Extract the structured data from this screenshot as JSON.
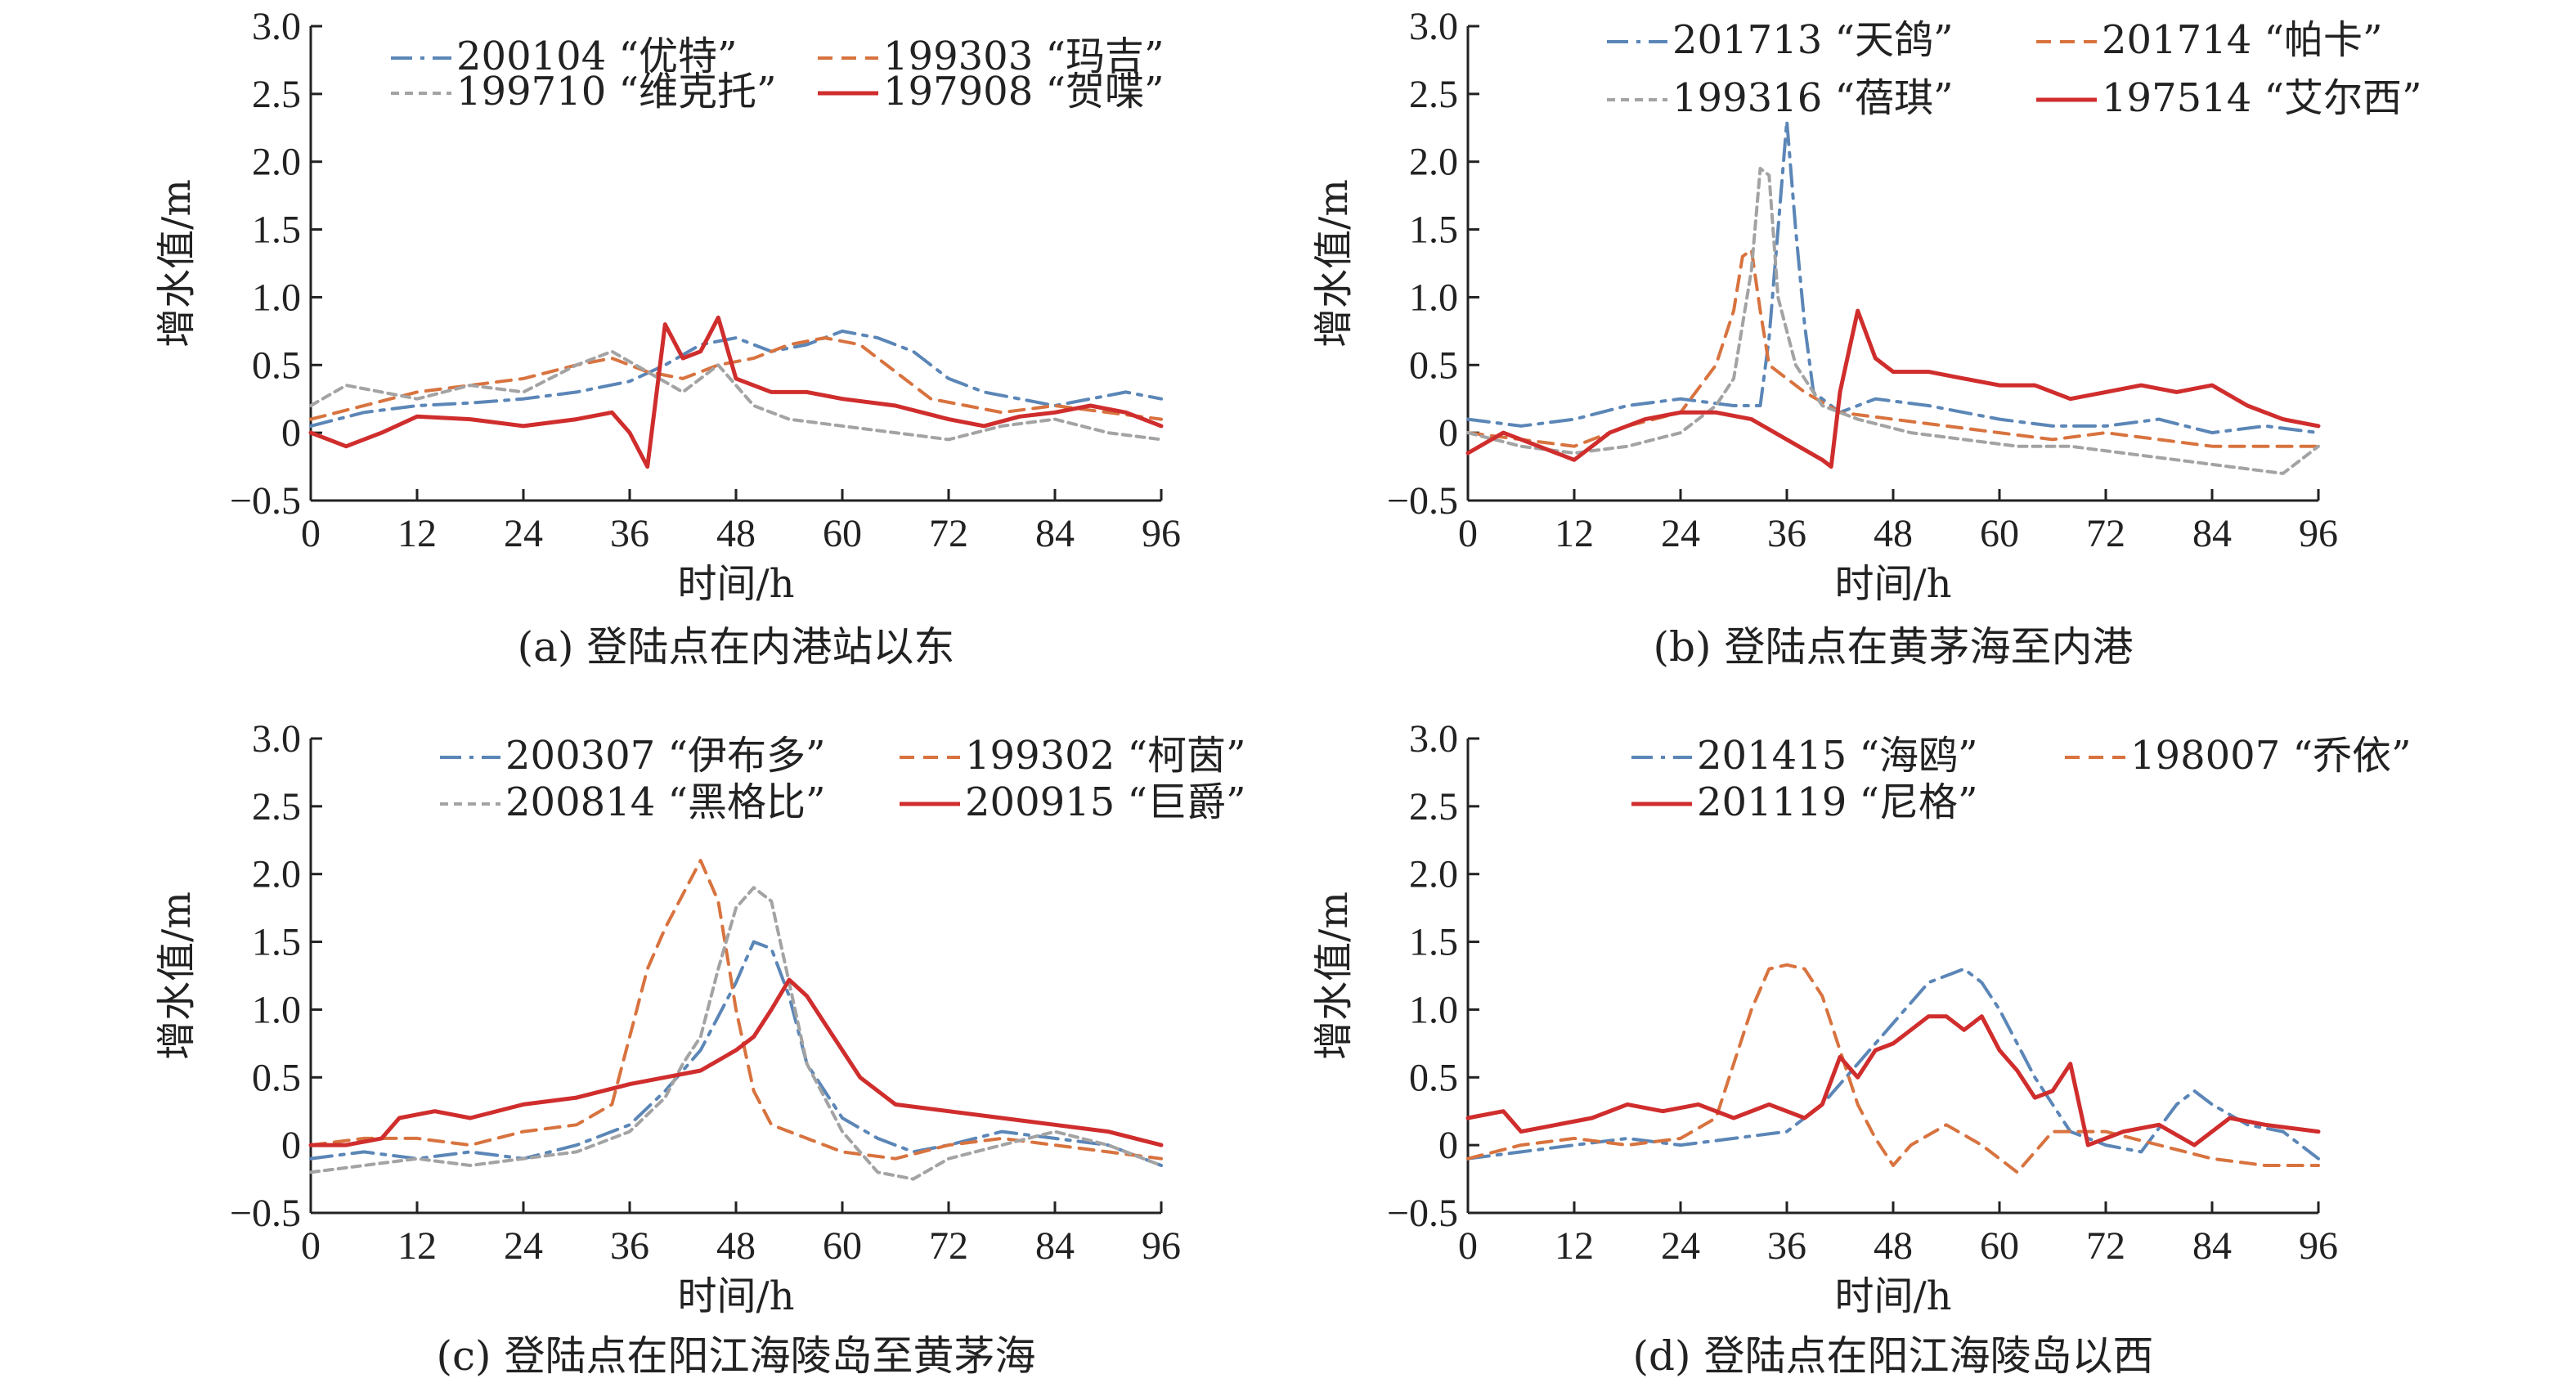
{
  "colors": {
    "blue": "#5b86b7",
    "orange": "#d8733f",
    "gray": "#a3a3a3",
    "red": "#d02d2d"
  },
  "axes": {
    "xlabel": "时间/h",
    "ylabel": "增水值/m"
  },
  "chart_data": [
    {
      "type": "line",
      "caption": "(a) 登陆点在内港站以东",
      "xlim": [
        0,
        96
      ],
      "ylim": [
        -0.5,
        3.0
      ],
      "xticks": [
        "0",
        "12",
        "24",
        "36",
        "48",
        "60",
        "72",
        "84",
        "96"
      ],
      "yticks": [
        "−0.5",
        "0",
        "0.5",
        "1.0",
        "1.5",
        "2.0",
        "2.5",
        "3.0"
      ],
      "series": [
        {
          "name": "200104 “优特”",
          "style": "dashdot",
          "color": "#5b86b7",
          "x": [
            0,
            6,
            12,
            18,
            24,
            30,
            36,
            40,
            44,
            48,
            52,
            56,
            60,
            64,
            68,
            72,
            76,
            80,
            84,
            88,
            92,
            96
          ],
          "y": [
            0.05,
            0.15,
            0.2,
            0.22,
            0.25,
            0.3,
            0.38,
            0.5,
            0.65,
            0.7,
            0.6,
            0.65,
            0.75,
            0.7,
            0.6,
            0.4,
            0.3,
            0.25,
            0.2,
            0.25,
            0.3,
            0.25
          ]
        },
        {
          "name": "199303 “玛吉”",
          "style": "dashed",
          "color": "#d8733f",
          "x": [
            0,
            6,
            12,
            18,
            24,
            30,
            34,
            38,
            42,
            46,
            50,
            54,
            58,
            62,
            66,
            70,
            74,
            78,
            84,
            90,
            96
          ],
          "y": [
            0.1,
            0.2,
            0.3,
            0.35,
            0.4,
            0.5,
            0.55,
            0.45,
            0.4,
            0.5,
            0.55,
            0.65,
            0.7,
            0.65,
            0.45,
            0.25,
            0.2,
            0.15,
            0.2,
            0.15,
            0.1
          ]
        },
        {
          "name": "199710 “维克托”",
          "style": "dotted",
          "color": "#a3a3a3",
          "x": [
            0,
            4,
            8,
            12,
            18,
            24,
            30,
            34,
            38,
            42,
            46,
            50,
            54,
            60,
            66,
            72,
            78,
            84,
            90,
            96
          ],
          "y": [
            0.2,
            0.35,
            0.3,
            0.25,
            0.35,
            0.3,
            0.5,
            0.6,
            0.45,
            0.3,
            0.5,
            0.2,
            0.1,
            0.05,
            0.0,
            -0.05,
            0.05,
            0.1,
            0.0,
            -0.05
          ]
        },
        {
          "name": "197908 “贺喋”",
          "style": "solid",
          "color": "#d02d2d",
          "x": [
            0,
            4,
            8,
            12,
            18,
            24,
            30,
            34,
            36,
            38,
            40,
            42,
            44,
            46,
            48,
            52,
            56,
            60,
            66,
            72,
            76,
            80,
            84,
            88,
            92,
            96
          ],
          "y": [
            0.0,
            -0.1,
            0.0,
            0.12,
            0.1,
            0.05,
            0.1,
            0.15,
            0.0,
            -0.25,
            0.8,
            0.55,
            0.6,
            0.85,
            0.4,
            0.3,
            0.3,
            0.25,
            0.2,
            0.1,
            0.05,
            0.12,
            0.15,
            0.2,
            0.15,
            0.05
          ]
        }
      ]
    },
    {
      "type": "line",
      "caption": "(b) 登陆点在黄茅海至内港",
      "xlim": [
        0,
        96
      ],
      "ylim": [
        -0.5,
        3.0
      ],
      "xticks": [
        "0",
        "12",
        "24",
        "36",
        "48",
        "60",
        "72",
        "84",
        "96"
      ],
      "yticks": [
        "−0.5",
        "0",
        "0.5",
        "1.0",
        "1.5",
        "2.0",
        "2.5",
        "3.0"
      ],
      "series": [
        {
          "name": "201713 “天鸽”",
          "style": "dashdot",
          "color": "#5b86b7",
          "x": [
            0,
            6,
            12,
            18,
            24,
            30,
            33,
            34,
            35,
            36,
            37,
            38,
            39,
            42,
            46,
            52,
            60,
            66,
            72,
            78,
            84,
            90,
            96
          ],
          "y": [
            0.1,
            0.05,
            0.1,
            0.2,
            0.25,
            0.2,
            0.2,
            0.7,
            1.5,
            2.3,
            1.5,
            0.8,
            0.3,
            0.15,
            0.25,
            0.2,
            0.1,
            0.05,
            0.05,
            0.1,
            0.0,
            0.05,
            0.0
          ]
        },
        {
          "name": "201714 “帕卡”",
          "style": "dashed",
          "color": "#d8733f",
          "x": [
            0,
            6,
            12,
            18,
            24,
            28,
            30,
            31,
            32,
            33,
            34,
            36,
            38,
            42,
            48,
            54,
            60,
            66,
            72,
            78,
            84,
            90,
            96
          ],
          "y": [
            0.0,
            -0.05,
            -0.1,
            0.05,
            0.15,
            0.5,
            0.9,
            1.3,
            1.35,
            0.9,
            0.5,
            0.4,
            0.3,
            0.15,
            0.1,
            0.05,
            0.0,
            -0.05,
            0.0,
            -0.05,
            -0.1,
            -0.1,
            -0.1
          ]
        },
        {
          "name": "199316 “蓓琪”",
          "style": "dotted",
          "color": "#a3a3a3",
          "x": [
            0,
            6,
            12,
            18,
            24,
            28,
            30,
            32,
            33,
            34,
            35,
            37,
            40,
            44,
            50,
            56,
            62,
            68,
            74,
            80,
            86,
            92,
            96
          ],
          "y": [
            0.0,
            -0.1,
            -0.15,
            -0.1,
            0.0,
            0.2,
            0.4,
            1.2,
            1.95,
            1.9,
            1.0,
            0.5,
            0.2,
            0.1,
            0.0,
            -0.05,
            -0.1,
            -0.1,
            -0.15,
            -0.2,
            -0.25,
            -0.3,
            -0.1
          ]
        },
        {
          "name": "197514 “艾尔西”",
          "style": "solid",
          "color": "#d02d2d",
          "x": [
            0,
            4,
            8,
            12,
            16,
            20,
            24,
            28,
            32,
            36,
            40,
            41,
            42,
            43,
            44,
            46,
            48,
            52,
            56,
            60,
            64,
            68,
            72,
            76,
            80,
            84,
            88,
            92,
            96
          ],
          "y": [
            -0.15,
            0.0,
            -0.1,
            -0.2,
            0.0,
            0.1,
            0.15,
            0.15,
            0.1,
            -0.05,
            -0.2,
            -0.25,
            0.3,
            0.6,
            0.9,
            0.55,
            0.45,
            0.45,
            0.4,
            0.35,
            0.35,
            0.25,
            0.3,
            0.35,
            0.3,
            0.35,
            0.2,
            0.1,
            0.05
          ]
        }
      ]
    },
    {
      "type": "line",
      "caption": "(c) 登陆点在阳江海陵岛至黄茅海",
      "xlim": [
        0,
        96
      ],
      "ylim": [
        -0.5,
        3.0
      ],
      "xticks": [
        "0",
        "12",
        "24",
        "36",
        "48",
        "60",
        "72",
        "84",
        "96"
      ],
      "yticks": [
        "−0.5",
        "0",
        "0.5",
        "1.0",
        "1.5",
        "2.0",
        "2.5",
        "3.0"
      ],
      "series": [
        {
          "name": "200307 “伊布多”",
          "style": "dashdot",
          "color": "#5b86b7",
          "x": [
            0,
            6,
            12,
            18,
            24,
            30,
            36,
            40,
            44,
            48,
            50,
            52,
            54,
            56,
            60,
            64,
            68,
            72,
            78,
            84,
            90,
            96
          ],
          "y": [
            -0.1,
            -0.05,
            -0.1,
            -0.05,
            -0.1,
            0.0,
            0.15,
            0.4,
            0.7,
            1.2,
            1.5,
            1.45,
            1.1,
            0.6,
            0.2,
            0.05,
            -0.05,
            0.0,
            0.1,
            0.05,
            0.0,
            -0.15
          ]
        },
        {
          "name": "199302 “柯茵”",
          "style": "dashed",
          "color": "#d8733f",
          "x": [
            0,
            6,
            12,
            18,
            24,
            30,
            34,
            36,
            38,
            40,
            42,
            44,
            46,
            48,
            50,
            52,
            56,
            60,
            66,
            72,
            78,
            84,
            90,
            96
          ],
          "y": [
            0.0,
            0.05,
            0.05,
            0.0,
            0.1,
            0.15,
            0.3,
            0.8,
            1.3,
            1.6,
            1.85,
            2.1,
            1.8,
            1.0,
            0.4,
            0.15,
            0.05,
            -0.05,
            -0.1,
            0.0,
            0.05,
            0.0,
            -0.05,
            -0.1
          ]
        },
        {
          "name": "200814 “黑格比”",
          "style": "dotted",
          "color": "#a3a3a3",
          "x": [
            0,
            6,
            12,
            18,
            24,
            30,
            36,
            40,
            42,
            44,
            46,
            48,
            50,
            52,
            54,
            56,
            60,
            64,
            68,
            72,
            78,
            84,
            90,
            96
          ],
          "y": [
            -0.2,
            -0.15,
            -0.1,
            -0.15,
            -0.1,
            -0.05,
            0.1,
            0.35,
            0.6,
            0.8,
            1.3,
            1.75,
            1.9,
            1.8,
            1.2,
            0.6,
            0.1,
            -0.2,
            -0.25,
            -0.1,
            0.0,
            0.1,
            0.0,
            -0.15
          ]
        },
        {
          "name": "200915 “巨爵”",
          "style": "solid",
          "color": "#d02d2d",
          "x": [
            0,
            4,
            8,
            10,
            14,
            18,
            24,
            30,
            36,
            40,
            44,
            48,
            50,
            52,
            54,
            56,
            58,
            62,
            66,
            72,
            78,
            84,
            90,
            96
          ],
          "y": [
            0.0,
            0.0,
            0.05,
            0.2,
            0.25,
            0.2,
            0.3,
            0.35,
            0.45,
            0.5,
            0.55,
            0.7,
            0.8,
            1.0,
            1.22,
            1.1,
            0.9,
            0.5,
            0.3,
            0.25,
            0.2,
            0.15,
            0.1,
            0.0
          ]
        }
      ]
    },
    {
      "type": "line",
      "caption": "(d) 登陆点在阳江海陵岛以西",
      "xlim": [
        0,
        96
      ],
      "ylim": [
        -0.5,
        3.0
      ],
      "xticks": [
        "0",
        "12",
        "24",
        "36",
        "48",
        "60",
        "72",
        "84",
        "96"
      ],
      "yticks": [
        "−0.5",
        "0",
        "0.5",
        "1.0",
        "1.5",
        "2.0",
        "2.5",
        "3.0"
      ],
      "series": [
        {
          "name": "201415 “海鸥”",
          "style": "dashdot",
          "color": "#5b86b7",
          "x": [
            0,
            6,
            12,
            18,
            24,
            30,
            36,
            40,
            44,
            48,
            52,
            54,
            56,
            58,
            60,
            64,
            68,
            72,
            76,
            80,
            82,
            84,
            88,
            92,
            96
          ],
          "y": [
            -0.1,
            -0.05,
            0.0,
            0.05,
            0.0,
            0.05,
            0.1,
            0.3,
            0.6,
            0.9,
            1.2,
            1.25,
            1.3,
            1.2,
            1.0,
            0.5,
            0.1,
            0.0,
            -0.05,
            0.3,
            0.4,
            0.3,
            0.15,
            0.1,
            -0.1
          ]
        },
        {
          "name": "198007 “乔依”",
          "style": "dashed",
          "color": "#d8733f",
          "x": [
            0,
            6,
            12,
            18,
            24,
            28,
            30,
            32,
            34,
            36,
            38,
            40,
            42,
            44,
            46,
            48,
            50,
            54,
            58,
            62,
            66,
            72,
            78,
            84,
            90,
            96
          ],
          "y": [
            -0.1,
            0.0,
            0.05,
            0.0,
            0.05,
            0.2,
            0.6,
            1.0,
            1.3,
            1.33,
            1.3,
            1.1,
            0.7,
            0.3,
            0.05,
            -0.15,
            0.0,
            0.15,
            0.0,
            -0.2,
            0.1,
            0.1,
            0.0,
            -0.1,
            -0.15,
            -0.15
          ]
        },
        {
          "name": "201119 “尼格”",
          "style": "solid",
          "color": "#d02d2d",
          "x": [
            0,
            4,
            6,
            10,
            14,
            18,
            22,
            26,
            30,
            34,
            38,
            40,
            42,
            44,
            46,
            48,
            50,
            52,
            54,
            56,
            58,
            60,
            62,
            64,
            66,
            68,
            70,
            74,
            78,
            82,
            86,
            90,
            96
          ],
          "y": [
            0.2,
            0.25,
            0.1,
            0.15,
            0.2,
            0.3,
            0.25,
            0.3,
            0.2,
            0.3,
            0.2,
            0.3,
            0.65,
            0.5,
            0.7,
            0.75,
            0.85,
            0.95,
            0.95,
            0.85,
            0.95,
            0.7,
            0.55,
            0.35,
            0.4,
            0.6,
            0.0,
            0.1,
            0.15,
            0.0,
            0.2,
            0.15,
            0.1
          ]
        }
      ]
    }
  ]
}
